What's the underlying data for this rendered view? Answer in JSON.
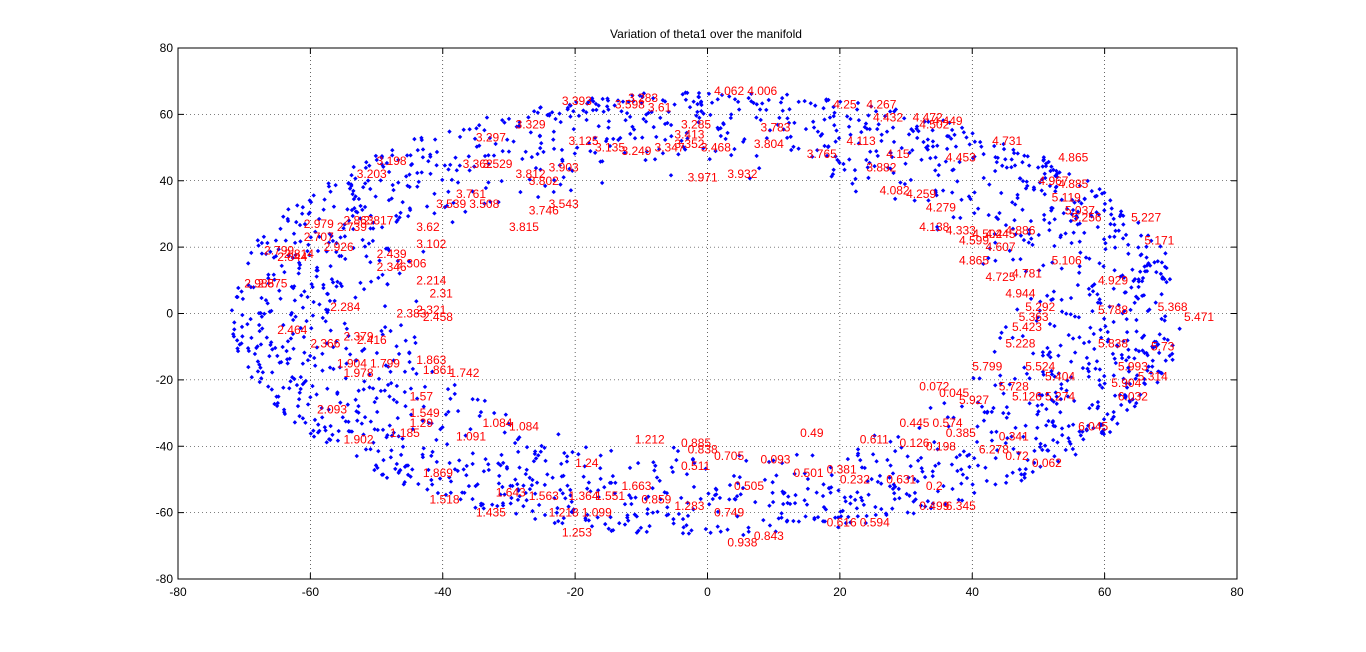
{
  "chart_data": {
    "type": "scatter",
    "title": "Variation of theta1 over the manifold",
    "xlabel": "",
    "ylabel": "",
    "xlim": [
      -80,
      80
    ],
    "ylim": [
      -80,
      80
    ],
    "x_ticks": [
      "-80",
      "-60",
      "-40",
      "-20",
      "0",
      "20",
      "40",
      "60",
      "80"
    ],
    "y_ticks": [
      "80",
      "60",
      "40",
      "20",
      "0",
      "-20",
      "-40",
      "-60",
      "-80"
    ],
    "grid": true,
    "grid_style": "dotted",
    "marker_color": "#0000ff",
    "annotation_color": "#ff0000",
    "point_description": "About 2,000 blue point markers filling an elliptical ring (annulus): outer radius about 72 along x and 67 along y, inner radius about 43 along x and 40 along y, centred near (0, 0).",
    "ring": {
      "outer_rx": 72,
      "outer_ry": 67,
      "inner_rx": 43,
      "inner_ry": 40,
      "count": 1900
    },
    "annotations": [
      {
        "x": -22,
        "y": 64,
        "label": "3.393"
      },
      {
        "x": -12,
        "y": 65,
        "label": "3.283"
      },
      {
        "x": -14,
        "y": 63,
        "label": "3.598"
      },
      {
        "x": -9,
        "y": 62,
        "label": "3.61"
      },
      {
        "x": 1,
        "y": 67,
        "label": "4.062"
      },
      {
        "x": 6,
        "y": 67,
        "label": "4.006"
      },
      {
        "x": 19,
        "y": 63,
        "label": "4.25"
      },
      {
        "x": 24,
        "y": 63,
        "label": "4.267"
      },
      {
        "x": 25,
        "y": 59,
        "label": "4.432"
      },
      {
        "x": 31,
        "y": 59,
        "label": "4.472"
      },
      {
        "x": 34,
        "y": 58,
        "label": "4.449"
      },
      {
        "x": 32,
        "y": 57,
        "label": "4.502"
      },
      {
        "x": -4,
        "y": 57,
        "label": "3.285"
      },
      {
        "x": -5,
        "y": 54,
        "label": "3.413"
      },
      {
        "x": -35,
        "y": 53,
        "label": "3.297"
      },
      {
        "x": -29,
        "y": 57,
        "label": "3.329"
      },
      {
        "x": -21,
        "y": 52,
        "label": "3.125"
      },
      {
        "x": -17,
        "y": 50,
        "label": "3.135"
      },
      {
        "x": -13,
        "y": 49,
        "label": "3.249"
      },
      {
        "x": -8,
        "y": 50,
        "label": "3.347"
      },
      {
        "x": -5,
        "y": 51,
        "label": "3.352"
      },
      {
        "x": -1,
        "y": 50,
        "label": "3.468"
      },
      {
        "x": 8,
        "y": 56,
        "label": "3.783"
      },
      {
        "x": 7,
        "y": 51,
        "label": "3.804"
      },
      {
        "x": 15,
        "y": 48,
        "label": "3.765"
      },
      {
        "x": 21,
        "y": 52,
        "label": "4.113"
      },
      {
        "x": 27,
        "y": 48,
        "label": "4.15"
      },
      {
        "x": 36,
        "y": 47,
        "label": "4.453"
      },
      {
        "x": 43,
        "y": 52,
        "label": "4.731"
      },
      {
        "x": 53,
        "y": 47,
        "label": "4.865"
      },
      {
        "x": -50,
        "y": 46,
        "label": "3.198"
      },
      {
        "x": -37,
        "y": 45,
        "label": "3.362"
      },
      {
        "x": -34,
        "y": 45,
        "label": "3.529"
      },
      {
        "x": -53,
        "y": 42,
        "label": "3.203"
      },
      {
        "x": -29,
        "y": 42,
        "label": "3.812"
      },
      {
        "x": -27,
        "y": 40,
        "label": "3.802"
      },
      {
        "x": -24,
        "y": 44,
        "label": "3.903"
      },
      {
        "x": -3,
        "y": 41,
        "label": "3.971"
      },
      {
        "x": 3,
        "y": 42,
        "label": "3.932"
      },
      {
        "x": 24,
        "y": 44,
        "label": "3.882"
      },
      {
        "x": 26,
        "y": 37,
        "label": "4.082"
      },
      {
        "x": 30,
        "y": 36,
        "label": "4.259"
      },
      {
        "x": 50,
        "y": 40,
        "label": "4.967"
      },
      {
        "x": 53,
        "y": 39,
        "label": "4.885"
      },
      {
        "x": -38,
        "y": 36,
        "label": "3.761"
      },
      {
        "x": -41,
        "y": 33,
        "label": "3.539"
      },
      {
        "x": -36,
        "y": 33,
        "label": "3.508"
      },
      {
        "x": -27,
        "y": 31,
        "label": "3.746"
      },
      {
        "x": -24,
        "y": 33,
        "label": "3.543"
      },
      {
        "x": -30,
        "y": 26,
        "label": "3.815"
      },
      {
        "x": 33,
        "y": 32,
        "label": "4.279"
      },
      {
        "x": 52,
        "y": 35,
        "label": "5.119"
      },
      {
        "x": 54,
        "y": 31,
        "label": "5.037"
      },
      {
        "x": 55,
        "y": 29,
        "label": "5.256"
      },
      {
        "x": 64,
        "y": 29,
        "label": "5.227"
      },
      {
        "x": -61,
        "y": 27,
        "label": "2.979"
      },
      {
        "x": -55,
        "y": 28,
        "label": "2.863"
      },
      {
        "x": -52,
        "y": 28,
        "label": "2.817"
      },
      {
        "x": -56,
        "y": 26,
        "label": "2.739"
      },
      {
        "x": -61,
        "y": 23,
        "label": "2.707"
      },
      {
        "x": -44,
        "y": 26,
        "label": "3.62"
      },
      {
        "x": 32,
        "y": 26,
        "label": "4.138"
      },
      {
        "x": 36,
        "y": 25,
        "label": "4.333"
      },
      {
        "x": 40,
        "y": 24,
        "label": "4.502"
      },
      {
        "x": 42,
        "y": 24,
        "label": "4.445"
      },
      {
        "x": 45,
        "y": 25,
        "label": "4.886"
      },
      {
        "x": 38,
        "y": 22,
        "label": "4.599"
      },
      {
        "x": 42,
        "y": 20,
        "label": "4.607"
      },
      {
        "x": -67,
        "y": 19,
        "label": "2.799"
      },
      {
        "x": -58,
        "y": 20,
        "label": "2.926"
      },
      {
        "x": -65,
        "y": 17,
        "label": "2.844"
      },
      {
        "x": -64,
        "y": 18,
        "label": "2.814"
      },
      {
        "x": -50,
        "y": 18,
        "label": "2.439"
      },
      {
        "x": -44,
        "y": 21,
        "label": "3.102"
      },
      {
        "x": 38,
        "y": 16,
        "label": "4.865"
      },
      {
        "x": 52,
        "y": 16,
        "label": "5.106"
      },
      {
        "x": 66,
        "y": 22,
        "label": "5.171"
      },
      {
        "x": -50,
        "y": 14,
        "label": "2.346"
      },
      {
        "x": -47,
        "y": 15,
        "label": "2.306"
      },
      {
        "x": -44,
        "y": 10,
        "label": "2.214"
      },
      {
        "x": 42,
        "y": 11,
        "label": "4.725"
      },
      {
        "x": 46,
        "y": 12,
        "label": "4.781"
      },
      {
        "x": 59,
        "y": 10,
        "label": "4.929"
      },
      {
        "x": -70,
        "y": 9,
        "label": "2.985"
      },
      {
        "x": -68,
        "y": 9,
        "label": "2.875"
      },
      {
        "x": -42,
        "y": 6,
        "label": "2.31"
      },
      {
        "x": 45,
        "y": 6,
        "label": "4.944"
      },
      {
        "x": -57,
        "y": 2,
        "label": "2.284"
      },
      {
        "x": -47,
        "y": 0,
        "label": "2.383"
      },
      {
        "x": -44,
        "y": 1,
        "label": "2.321"
      },
      {
        "x": -43,
        "y": -1,
        "label": "2.458"
      },
      {
        "x": 48,
        "y": 2,
        "label": "5.292"
      },
      {
        "x": 47,
        "y": -1,
        "label": "5.363"
      },
      {
        "x": 59,
        "y": 1,
        "label": "5.788"
      },
      {
        "x": 68,
        "y": 2,
        "label": "5.368"
      },
      {
        "x": 72,
        "y": -1,
        "label": "5.471"
      },
      {
        "x": -65,
        "y": -5,
        "label": "2.464"
      },
      {
        "x": -60,
        "y": -9,
        "label": "2.366"
      },
      {
        "x": -55,
        "y": -7,
        "label": "2.379"
      },
      {
        "x": -53,
        "y": -8,
        "label": "2.416"
      },
      {
        "x": 46,
        "y": -4,
        "label": "5.423"
      },
      {
        "x": 45,
        "y": -9,
        "label": "5.228"
      },
      {
        "x": 59,
        "y": -9,
        "label": "5.838"
      },
      {
        "x": 67,
        "y": -10,
        "label": "5.73"
      },
      {
        "x": -56,
        "y": -15,
        "label": "1.904"
      },
      {
        "x": -51,
        "y": -15,
        "label": "1.799"
      },
      {
        "x": -55,
        "y": -18,
        "label": "1.978"
      },
      {
        "x": -44,
        "y": -14,
        "label": "1.863"
      },
      {
        "x": -43,
        "y": -17,
        "label": "1.861"
      },
      {
        "x": -39,
        "y": -18,
        "label": "1.742"
      },
      {
        "x": 40,
        "y": -16,
        "label": "5.799"
      },
      {
        "x": 48,
        "y": -16,
        "label": "5.524"
      },
      {
        "x": 51,
        "y": -19,
        "label": "5.404"
      },
      {
        "x": 62,
        "y": -16,
        "label": "5.993"
      },
      {
        "x": 65,
        "y": -19,
        "label": "5.314"
      },
      {
        "x": 61,
        "y": -21,
        "label": "5.904"
      },
      {
        "x": 62,
        "y": -25,
        "label": "6.032"
      },
      {
        "x": 32,
        "y": -22,
        "label": "0.072"
      },
      {
        "x": 35,
        "y": -24,
        "label": "0.045"
      },
      {
        "x": 38,
        "y": -26,
        "label": "5.927"
      },
      {
        "x": 44,
        "y": -22,
        "label": "5.728"
      },
      {
        "x": 46,
        "y": -25,
        "label": "5.126"
      },
      {
        "x": 51,
        "y": -25,
        "label": "5.274"
      },
      {
        "x": -45,
        "y": -25,
        "label": "1.57"
      },
      {
        "x": -59,
        "y": -29,
        "label": "2.093"
      },
      {
        "x": -45,
        "y": -30,
        "label": "1.549"
      },
      {
        "x": -45,
        "y": -33,
        "label": "1.29"
      },
      {
        "x": -48,
        "y": -36,
        "label": "1.185"
      },
      {
        "x": -38,
        "y": -37,
        "label": "1.091"
      },
      {
        "x": -34,
        "y": -33,
        "label": "1.084"
      },
      {
        "x": -30,
        "y": -34,
        "label": "1.084"
      },
      {
        "x": 14,
        "y": -36,
        "label": "0.49"
      },
      {
        "x": 23,
        "y": -38,
        "label": "0.611"
      },
      {
        "x": 29,
        "y": -33,
        "label": "0.445"
      },
      {
        "x": 34,
        "y": -33,
        "label": "0.574"
      },
      {
        "x": 29,
        "y": -39,
        "label": "0.126"
      },
      {
        "x": 33,
        "y": -40,
        "label": "0.198"
      },
      {
        "x": 36,
        "y": -36,
        "label": "0.385"
      },
      {
        "x": 44,
        "y": -37,
        "label": "0.341"
      },
      {
        "x": 56,
        "y": -34,
        "label": "6.045"
      },
      {
        "x": -55,
        "y": -38,
        "label": "1.902"
      },
      {
        "x": -11,
        "y": -38,
        "label": "1.212"
      },
      {
        "x": -4,
        "y": -39,
        "label": "0.885"
      },
      {
        "x": -3,
        "y": -41,
        "label": "0.838"
      },
      {
        "x": 1,
        "y": -43,
        "label": "0.705"
      },
      {
        "x": -4,
        "y": -46,
        "label": "0.511"
      },
      {
        "x": 41,
        "y": -41,
        "label": "6.278"
      },
      {
        "x": 45,
        "y": -43,
        "label": "0.72"
      },
      {
        "x": 49,
        "y": -45,
        "label": "0.062"
      },
      {
        "x": -20,
        "y": -45,
        "label": "1.24"
      },
      {
        "x": 8,
        "y": -44,
        "label": "0.093"
      },
      {
        "x": 13,
        "y": -48,
        "label": "0.501"
      },
      {
        "x": 18,
        "y": -47,
        "label": "0.381"
      },
      {
        "x": 20,
        "y": -50,
        "label": "0.232"
      },
      {
        "x": 27,
        "y": -50,
        "label": "0.631"
      },
      {
        "x": 33,
        "y": -52,
        "label": "0.2"
      },
      {
        "x": -43,
        "y": -48,
        "label": "1.869"
      },
      {
        "x": -13,
        "y": -52,
        "label": "1.663"
      },
      {
        "x": 4,
        "y": -52,
        "label": "0.505"
      },
      {
        "x": -42,
        "y": -56,
        "label": "1.518"
      },
      {
        "x": -32,
        "y": -54,
        "label": "1.643"
      },
      {
        "x": -27,
        "y": -55,
        "label": "1.563"
      },
      {
        "x": -21,
        "y": -55,
        "label": "1.364"
      },
      {
        "x": -17,
        "y": -55,
        "label": "1.551"
      },
      {
        "x": -10,
        "y": -56,
        "label": "0.859"
      },
      {
        "x": -35,
        "y": -60,
        "label": "1.435"
      },
      {
        "x": -24,
        "y": -60,
        "label": "1.218"
      },
      {
        "x": -19,
        "y": -60,
        "label": "1.099"
      },
      {
        "x": -5,
        "y": -58,
        "label": "1.283"
      },
      {
        "x": 1,
        "y": -60,
        "label": "0.749"
      },
      {
        "x": 32,
        "y": -58,
        "label": "0.499"
      },
      {
        "x": 36,
        "y": -58,
        "label": "6.345"
      },
      {
        "x": 18,
        "y": -63,
        "label": "0.616"
      },
      {
        "x": 23,
        "y": -63,
        "label": "0.594"
      },
      {
        "x": -22,
        "y": -66,
        "label": "1.253"
      },
      {
        "x": 7,
        "y": -67,
        "label": "0.843"
      },
      {
        "x": 3,
        "y": -69,
        "label": "0.938"
      }
    ]
  }
}
